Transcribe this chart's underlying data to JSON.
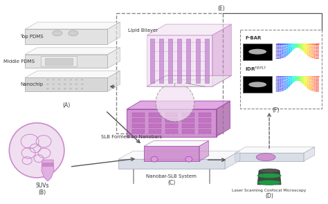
{
  "bg_color": "#ffffff",
  "arrow_color": "#555555",
  "pdms_color": "#e0e0e0",
  "pdms_edge": "#aaaaaa",
  "lipid_color": "#cc88cc",
  "lipid_light": "#e8d0e8",
  "glass_color": "#d8dde8",
  "labels": {
    "top_pdms": "Top PDMS",
    "middle_pdms": "Middle PDMS",
    "nanochip": "Nanochip",
    "A": "(A)",
    "SUVs": "SUVs",
    "B": "(B)",
    "nanobar_slb": "Nanobar-SLB System",
    "C": "(C)",
    "laser": "Laser Scanning Confocal Microscopy",
    "D": "(D)",
    "E": "(E)",
    "F": "(F)",
    "lipid_bilayer": "Lipid Bilayer",
    "slb_nanobars": "SLB Formed on Nanobars",
    "fbar": "F-BAR",
    "idr": "IDR"
  },
  "figsize": [
    4.74,
    2.95
  ],
  "dpi": 100
}
